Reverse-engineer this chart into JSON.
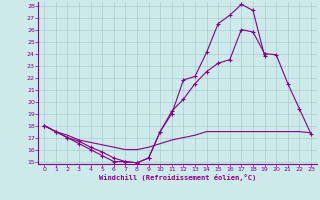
{
  "xlabel": "Windchill (Refroidissement éolien,°C)",
  "bg_color": "#cceaea",
  "grid_color": "#aacccc",
  "line_color": "#880088",
  "xlim": [
    -0.5,
    23.5
  ],
  "ylim": [
    14.8,
    28.3
  ],
  "xticks": [
    0,
    1,
    2,
    3,
    4,
    5,
    6,
    7,
    8,
    9,
    10,
    11,
    12,
    13,
    14,
    15,
    16,
    17,
    18,
    19,
    20,
    21,
    22,
    23
  ],
  "yticks": [
    15,
    16,
    17,
    18,
    19,
    20,
    21,
    22,
    23,
    24,
    25,
    26,
    27,
    28
  ],
  "series": [
    {
      "x": [
        0,
        1,
        2,
        3,
        4,
        5,
        6,
        7,
        8,
        9,
        10,
        11,
        12,
        13,
        14,
        15,
        16,
        17,
        18,
        19,
        20,
        21,
        22,
        23
      ],
      "y": [
        18,
        17.5,
        17.0,
        16.7,
        16.2,
        15.8,
        15.3,
        15.0,
        14.9,
        15.3,
        17.5,
        19.0,
        21.8,
        22.1,
        24.1,
        26.5,
        27.2,
        28.1,
        27.6,
        23.8,
        null,
        null,
        null,
        null
      ],
      "marker": true,
      "has_end": false
    },
    {
      "x": [
        0,
        1,
        2,
        3,
        4,
        5,
        6,
        7,
        8,
        9,
        10,
        11,
        12,
        13,
        14,
        15,
        16,
        17,
        18,
        19,
        20,
        21,
        22,
        23
      ],
      "y": [
        18.0,
        17.5,
        17.2,
        16.8,
        16.6,
        16.4,
        16.2,
        16.0,
        16.0,
        16.2,
        16.5,
        16.8,
        17.0,
        17.2,
        17.5,
        17.5,
        17.5,
        17.5,
        17.5,
        17.5,
        17.5,
        17.5,
        17.5,
        17.4
      ],
      "marker": false,
      "has_end": false
    },
    {
      "x": [
        0,
        1,
        2,
        3,
        4,
        5,
        6,
        7,
        8,
        9,
        10,
        11,
        12,
        13,
        14,
        15,
        16,
        17,
        18,
        19,
        20,
        21,
        22,
        23
      ],
      "y": [
        18.0,
        17.5,
        17.0,
        16.5,
        16.0,
        15.5,
        15.0,
        15.0,
        14.9,
        15.3,
        17.5,
        19.2,
        20.2,
        21.5,
        22.5,
        23.2,
        23.5,
        26.0,
        25.8,
        24.0,
        23.9,
        21.5,
        19.4,
        17.3
      ],
      "marker": true,
      "has_end": false
    }
  ]
}
